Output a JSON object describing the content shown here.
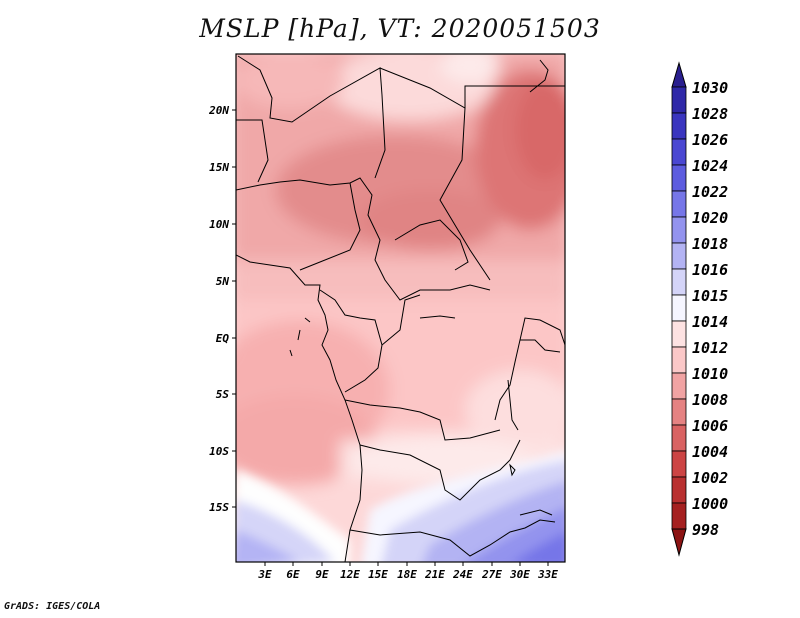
{
  "title": "MSLP [hPa], VT: 2020051503",
  "footer": "GrADS: IGES/COLA",
  "map": {
    "lat_labels": [
      "20N",
      "15N",
      "10N",
      "5N",
      "EQ",
      "5S",
      "10S",
      "15S"
    ],
    "lon_labels": [
      "3E",
      "6E",
      "9E",
      "12E",
      "15E",
      "18E",
      "21E",
      "24E",
      "27E",
      "30E",
      "33E"
    ]
  },
  "colorbar": {
    "levels": [
      "1030",
      "1028",
      "1026",
      "1024",
      "1022",
      "1020",
      "1018",
      "1016",
      "1015",
      "1014",
      "1012",
      "1010",
      "1008",
      "1006",
      "1004",
      "1002",
      "1000",
      "998"
    ],
    "colors": [
      "#2a1f8f",
      "#2f28a8",
      "#3a35bf",
      "#4a47d2",
      "#5d5cdf",
      "#7676e8",
      "#9393ee",
      "#b3b3f3",
      "#d4d4f8",
      "#f6f6ff",
      "#fde2e2",
      "#fbc8c8",
      "#f1a3a3",
      "#e58282",
      "#d96262",
      "#cc4444",
      "#b93030",
      "#a52020",
      "#8c1414"
    ]
  }
}
